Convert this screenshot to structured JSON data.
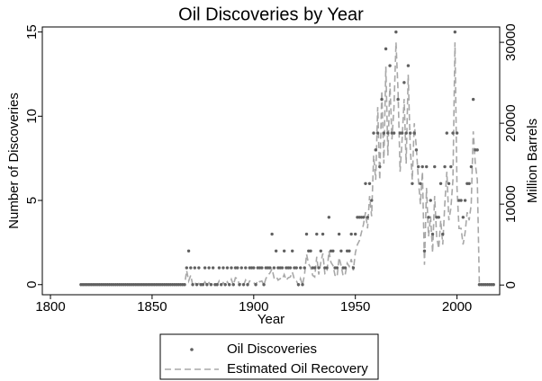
{
  "chart_data": {
    "type": "scatter-line",
    "title": "Oil Discoveries by Year",
    "x_label": "Year",
    "y_label": "Number of Discoveries",
    "y2_label": "Million Barrels",
    "xlim": [
      1796,
      2021
    ],
    "xticks": [
      1800,
      1850,
      1900,
      1950,
      2000
    ],
    "ylim": [
      -0.6,
      15.3
    ],
    "yticks": [
      0,
      5,
      10,
      15
    ],
    "y2lim": [
      -1200,
      31900
    ],
    "y2ticks": [
      0,
      10000,
      20000,
      30000
    ],
    "x": [
      1815,
      1816,
      1817,
      1818,
      1819,
      1820,
      1821,
      1822,
      1823,
      1824,
      1825,
      1826,
      1827,
      1828,
      1829,
      1830,
      1831,
      1832,
      1833,
      1834,
      1835,
      1836,
      1837,
      1838,
      1839,
      1840,
      1841,
      1842,
      1843,
      1844,
      1845,
      1846,
      1847,
      1848,
      1849,
      1850,
      1851,
      1852,
      1853,
      1854,
      1855,
      1856,
      1857,
      1858,
      1859,
      1860,
      1861,
      1862,
      1863,
      1864,
      1865,
      1866,
      1867,
      1868,
      1869,
      1870,
      1871,
      1872,
      1873,
      1874,
      1875,
      1876,
      1877,
      1878,
      1879,
      1880,
      1881,
      1882,
      1883,
      1884,
      1885,
      1886,
      1887,
      1888,
      1889,
      1890,
      1891,
      1892,
      1893,
      1894,
      1895,
      1896,
      1897,
      1898,
      1899,
      1900,
      1901,
      1902,
      1903,
      1904,
      1905,
      1906,
      1907,
      1908,
      1909,
      1910,
      1911,
      1912,
      1913,
      1914,
      1915,
      1916,
      1917,
      1918,
      1919,
      1920,
      1921,
      1922,
      1923,
      1924,
      1925,
      1926,
      1927,
      1928,
      1929,
      1930,
      1931,
      1932,
      1933,
      1934,
      1935,
      1936,
      1937,
      1938,
      1939,
      1940,
      1941,
      1942,
      1943,
      1944,
      1945,
      1946,
      1947,
      1948,
      1949,
      1950,
      1951,
      1952,
      1953,
      1954,
      1955,
      1956,
      1957,
      1958,
      1959,
      1960,
      1961,
      1962,
      1963,
      1964,
      1965,
      1966,
      1967,
      1968,
      1969,
      1970,
      1971,
      1972,
      1973,
      1974,
      1975,
      1976,
      1977,
      1978,
      1979,
      1980,
      1981,
      1982,
      1983,
      1984,
      1985,
      1986,
      1987,
      1988,
      1989,
      1990,
      1991,
      1992,
      1993,
      1994,
      1995,
      1996,
      1997,
      1998,
      1999,
      2000,
      2001,
      2002,
      2003,
      2004,
      2005,
      2006,
      2007,
      2008,
      2009,
      2010,
      2011,
      2012,
      2013,
      2014,
      2015,
      2016,
      2017,
      2018
    ],
    "series": [
      {
        "name": "Oil Discoveries",
        "color": "#606060",
        "kind": "scatter",
        "values": [
          0,
          0,
          0,
          0,
          0,
          0,
          0,
          0,
          0,
          0,
          0,
          0,
          0,
          0,
          0,
          0,
          0,
          0,
          0,
          0,
          0,
          0,
          0,
          0,
          0,
          0,
          0,
          0,
          0,
          0,
          0,
          0,
          0,
          0,
          0,
          0,
          0,
          0,
          0,
          0,
          0,
          0,
          0,
          0,
          0,
          0,
          0,
          0,
          0,
          0,
          0,
          0,
          1,
          2,
          1,
          0,
          1,
          0,
          1,
          0,
          0,
          1,
          0,
          1,
          0,
          1,
          0,
          0,
          1,
          0,
          1,
          0,
          1,
          0,
          1,
          0,
          1,
          1,
          0,
          1,
          0,
          1,
          0,
          1,
          1,
          1,
          0,
          1,
          1,
          1,
          0,
          1,
          1,
          1,
          3,
          1,
          2,
          1,
          1,
          1,
          2,
          1,
          1,
          1,
          2,
          1,
          1,
          0,
          1,
          0,
          1,
          3,
          2,
          2,
          1,
          1,
          3,
          1,
          2,
          3,
          1,
          1,
          4,
          2,
          2,
          1,
          1,
          3,
          2,
          1,
          1,
          2,
          2,
          3,
          1,
          3,
          4,
          4,
          4,
          4,
          6,
          4,
          6,
          5,
          9,
          8,
          9,
          7,
          11,
          9,
          14,
          9,
          13,
          9,
          9,
          15,
          11,
          9,
          9,
          12,
          9,
          13,
          9,
          6,
          9,
          8,
          7,
          6,
          7,
          2,
          7,
          4,
          5,
          3,
          7,
          4,
          4,
          6,
          3,
          7,
          9,
          6,
          7,
          9,
          15,
          9,
          5,
          5,
          4,
          5,
          6,
          6,
          7,
          11,
          8,
          8,
          0,
          0,
          0,
          0,
          0,
          0,
          0,
          0
        ]
      },
      {
        "name": "Estimated Oil Recovery",
        "color": "#a8a8a8",
        "kind": "line",
        "axis": "y2",
        "values": [
          0,
          0,
          0,
          0,
          0,
          0,
          0,
          0,
          0,
          0,
          0,
          0,
          0,
          0,
          0,
          0,
          0,
          0,
          0,
          0,
          0,
          0,
          0,
          0,
          0,
          0,
          0,
          0,
          0,
          0,
          0,
          0,
          0,
          0,
          0,
          0,
          0,
          0,
          0,
          0,
          0,
          0,
          0,
          0,
          0,
          0,
          0,
          0,
          0,
          0,
          0,
          0,
          1800,
          500,
          1200,
          0,
          300,
          0,
          200,
          0,
          0,
          400,
          0,
          300,
          0,
          200,
          0,
          0,
          500,
          0,
          300,
          0,
          400,
          0,
          700,
          0,
          900,
          800,
          0,
          300,
          0,
          600,
          0,
          500,
          400,
          300,
          0,
          600,
          400,
          500,
          0,
          800,
          1200,
          1500,
          2000,
          900,
          1100,
          600,
          800,
          700,
          1300,
          600,
          900,
          1000,
          1600,
          700,
          500,
          0,
          800,
          0,
          1300,
          3800,
          2600,
          2200,
          1200,
          1000,
          3500,
          1300,
          2800,
          3900,
          1400,
          1500,
          4200,
          2800,
          2400,
          1200,
          1000,
          3400,
          2400,
          1100,
          1300,
          2700,
          2300,
          3200,
          1800,
          4000,
          5000,
          5500,
          6500,
          7500,
          9000,
          7000,
          11000,
          8500,
          16000,
          13000,
          22000,
          13000,
          24000,
          15000,
          27000,
          16000,
          25000,
          18000,
          22000,
          30000,
          24000,
          14000,
          18000,
          23000,
          15000,
          26000,
          17000,
          13000,
          20000,
          17000,
          13000,
          10000,
          14000,
          2500,
          12000,
          6000,
          8500,
          4000,
          11000,
          6000,
          4500,
          8000,
          5000,
          10000,
          14000,
          8000,
          9500,
          13000,
          30000,
          12000,
          7000,
          7000,
          5000,
          6500,
          9000,
          8000,
          10000,
          19000,
          15000,
          13000,
          0,
          0,
          0,
          0,
          0,
          0,
          0,
          0
        ]
      }
    ]
  }
}
